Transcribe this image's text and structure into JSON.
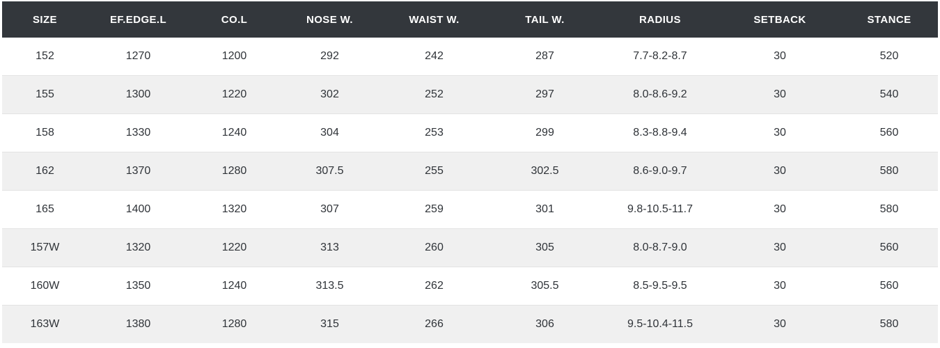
{
  "colors": {
    "header_bg": "#33373c",
    "header_text": "#ffffff",
    "row_bg": "#ffffff",
    "row_alt_bg": "#f0f0f0",
    "cell_text": "#2f3338",
    "divider": "#e3e3e3"
  },
  "chart_data": {
    "type": "table",
    "columns": [
      "SIZE",
      "EF.EDGE.L",
      "CO.L",
      "NOSE W.",
      "WAIST W.",
      "TAIL W.",
      "RADIUS",
      "SETBACK",
      "STANCE"
    ],
    "rows": [
      [
        "152",
        "1270",
        "1200",
        "292",
        "242",
        "287",
        "7.7-8.2-8.7",
        "30",
        "520"
      ],
      [
        "155",
        "1300",
        "1220",
        "302",
        "252",
        "297",
        "8.0-8.6-9.2",
        "30",
        "540"
      ],
      [
        "158",
        "1330",
        "1240",
        "304",
        "253",
        "299",
        "8.3-8.8-9.4",
        "30",
        "560"
      ],
      [
        "162",
        "1370",
        "1280",
        "307.5",
        "255",
        "302.5",
        "8.6-9.0-9.7",
        "30",
        "580"
      ],
      [
        "165",
        "1400",
        "1320",
        "307",
        "259",
        "301",
        "9.8-10.5-11.7",
        "30",
        "580"
      ],
      [
        "157W",
        "1320",
        "1220",
        "313",
        "260",
        "305",
        "8.0-8.7-9.0",
        "30",
        "560"
      ],
      [
        "160W",
        "1350",
        "1240",
        "313.5",
        "262",
        "305.5",
        "8.5-9.5-9.5",
        "30",
        "560"
      ],
      [
        "163W",
        "1380",
        "1280",
        "315",
        "266",
        "306",
        "9.5-10.4-11.5",
        "30",
        "580"
      ]
    ]
  }
}
